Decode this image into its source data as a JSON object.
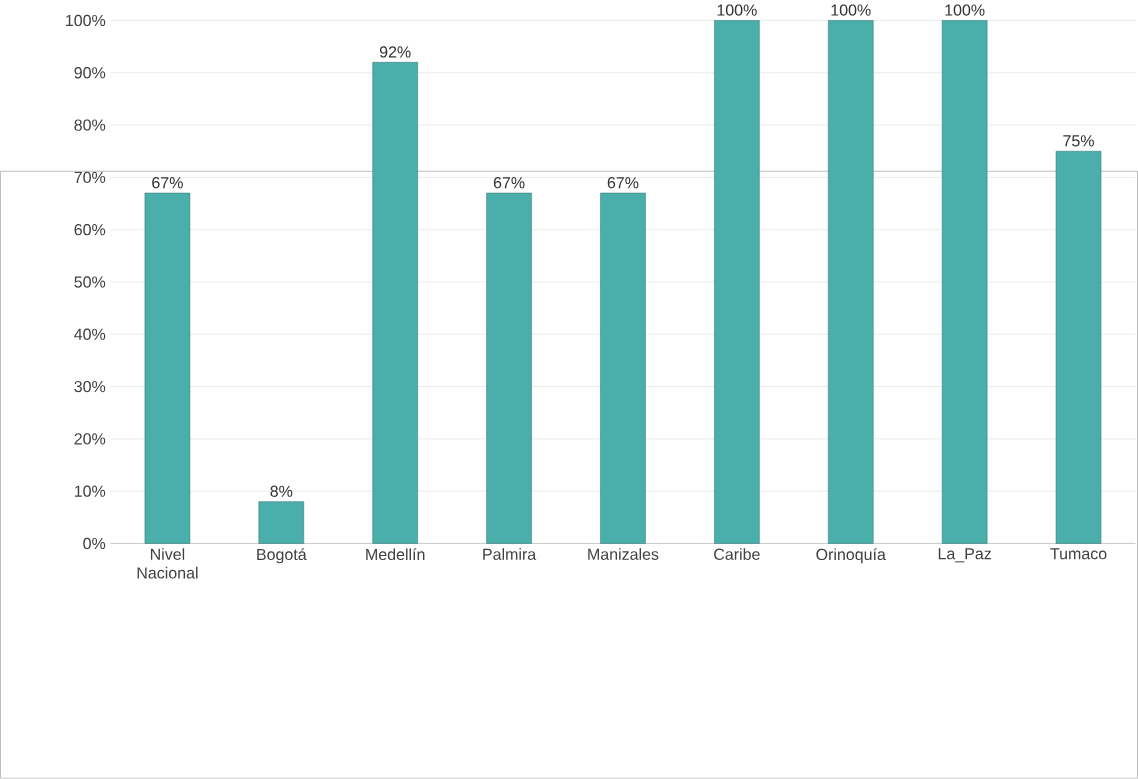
{
  "chart_data": {
    "type": "bar",
    "categories": [
      "Nivel Nacional",
      "Bogotá",
      "Medellín",
      "Palmira",
      "Manizales",
      "Caribe",
      "Orinoquía",
      "La_Paz",
      "Tumaco"
    ],
    "values": [
      67,
      8,
      92,
      67,
      67,
      100,
      100,
      100,
      75
    ],
    "value_labels": [
      "67%",
      "8%",
      "92%",
      "67%",
      "67%",
      "100%",
      "100%",
      "100%",
      "75%"
    ],
    "color": "#4aaeaa",
    "ylim": [
      0,
      100
    ],
    "yticks": [
      {
        "value": 0,
        "label": "0%"
      },
      {
        "value": 10,
        "label": "10%"
      },
      {
        "value": 20,
        "label": "20%"
      },
      {
        "value": 30,
        "label": "30%"
      },
      {
        "value": 40,
        "label": "40%"
      },
      {
        "value": 50,
        "label": "50%"
      },
      {
        "value": 60,
        "label": "60%"
      },
      {
        "value": 70,
        "label": "70%"
      },
      {
        "value": 80,
        "label": "80%"
      },
      {
        "value": 90,
        "label": "90%"
      },
      {
        "value": 100,
        "label": "100%"
      }
    ],
    "grid": "y"
  }
}
